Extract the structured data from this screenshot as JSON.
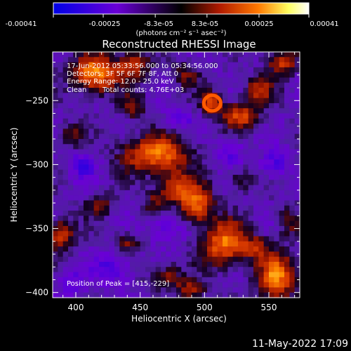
{
  "colorbar": {
    "tick_labels": [
      "-0.00041",
      "-0.00025",
      "-8.3e-05",
      "8.3e-05",
      "0.00025",
      "0.00041"
    ],
    "tick_values": [
      -0.00041,
      -0.00025,
      -8.3e-05,
      8.3e-05,
      0.00025,
      0.00041
    ],
    "range": [
      -0.00041,
      0.00041
    ],
    "units": "(photons cm⁻² s⁻¹ asec⁻²)",
    "colors": [
      "#0000e6",
      "#6a00d6",
      "#000000",
      "#b01a00",
      "#ff7800",
      "#ffff60",
      "#ffffff"
    ]
  },
  "annotations": {
    "line1": "17-Jun-2012 05:33:56.000 to 05:34:56.000",
    "line2": "Detectors: 3F 5F 6F 7F 8F, Att 0",
    "line3": "Energy Range: 12.0 - 25.0 keV",
    "line4_a": "Clean",
    "line4_b": "Total counts: 4.76E+03",
    "peak": "Position of Peak = [415,-229]"
  },
  "footer": {
    "timestamp": "11-May-2022 17:09"
  },
  "chart_data": {
    "type": "heatmap",
    "title": "Reconstructed RHESSI Image",
    "xlabel": "Heliocentric X (arcsec)",
    "ylabel": "Heliocentric Y (arcsec)",
    "xlim": [
      382,
      574
    ],
    "ylim": [
      -404,
      -212
    ],
    "x_ticks": [
      400,
      450,
      500,
      550
    ],
    "y_ticks": [
      -400,
      -350,
      -300,
      -250
    ],
    "x_tick_labels": [
      "400",
      "450",
      "500",
      "550"
    ],
    "y_tick_labels": [
      "−400",
      "−350",
      "−300",
      "−250"
    ],
    "peak_position": [
      415,
      -229
    ],
    "blobs": [
      {
        "x": 415,
        "y": -229,
        "sx": 12,
        "sy": 10,
        "amp": 1.0
      },
      {
        "x": 462,
        "y": -292,
        "sx": 18,
        "sy": 10,
        "amp": 0.9
      },
      {
        "x": 478,
        "y": -318,
        "sx": 10,
        "sy": 8,
        "amp": 0.7
      },
      {
        "x": 494,
        "y": -332,
        "sx": 9,
        "sy": 10,
        "amp": 0.85
      },
      {
        "x": 516,
        "y": -362,
        "sx": 12,
        "sy": 12,
        "amp": 0.9
      },
      {
        "x": 506,
        "y": -252,
        "sx": 6,
        "sy": 6,
        "amp": 0.7
      },
      {
        "x": 528,
        "y": -262,
        "sx": 10,
        "sy": 7,
        "amp": 0.7
      },
      {
        "x": 542,
        "y": -242,
        "sx": 8,
        "sy": 7,
        "amp": 0.6
      },
      {
        "x": 560,
        "y": -220,
        "sx": 8,
        "sy": 7,
        "amp": 0.65
      },
      {
        "x": 445,
        "y": -222,
        "sx": 9,
        "sy": 8,
        "amp": 0.6
      },
      {
        "x": 388,
        "y": -355,
        "sx": 7,
        "sy": 9,
        "amp": 0.65
      },
      {
        "x": 556,
        "y": -388,
        "sx": 10,
        "sy": 13,
        "amp": 0.9
      },
      {
        "x": 540,
        "y": -365,
        "sx": 7,
        "sy": 6,
        "amp": 0.5
      },
      {
        "x": 418,
        "y": -332,
        "sx": 7,
        "sy": 6,
        "amp": 0.45
      },
      {
        "x": 440,
        "y": -362,
        "sx": 7,
        "sy": 6,
        "amp": 0.45
      },
      {
        "x": 470,
        "y": -388,
        "sx": 9,
        "sy": 7,
        "amp": 0.5
      },
      {
        "x": 490,
        "y": -398,
        "sx": 8,
        "sy": 6,
        "amp": 0.45
      },
      {
        "x": 395,
        "y": -278,
        "sx": 7,
        "sy": 7,
        "amp": 0.4
      },
      {
        "x": 445,
        "y": -255,
        "sx": 7,
        "sy": 7,
        "amp": 0.45
      },
      {
        "x": 485,
        "y": -230,
        "sx": 7,
        "sy": 7,
        "amp": 0.4
      },
      {
        "x": 528,
        "y": -312,
        "sx": 7,
        "sy": 7,
        "amp": 0.35
      },
      {
        "x": 565,
        "y": -345,
        "sx": 6,
        "sy": 8,
        "amp": 0.4
      },
      {
        "x": 460,
        "y": -330,
        "sx": 6,
        "sy": 6,
        "amp": 0.35
      },
      {
        "x": 555,
        "y": -300,
        "sx": 8,
        "sy": 8,
        "amp": -0.4
      },
      {
        "x": 520,
        "y": -290,
        "sx": 8,
        "sy": 8,
        "amp": -0.35
      },
      {
        "x": 405,
        "y": -300,
        "sx": 8,
        "sy": 8,
        "amp": -0.35
      },
      {
        "x": 430,
        "y": -380,
        "sx": 10,
        "sy": 10,
        "amp": -0.4
      },
      {
        "x": 470,
        "y": -350,
        "sx": 10,
        "sy": 8,
        "amp": -0.35
      },
      {
        "x": 395,
        "y": -392,
        "sx": 8,
        "sy": 8,
        "amp": -0.3
      },
      {
        "x": 480,
        "y": -265,
        "sx": 8,
        "sy": 6,
        "amp": -0.3
      }
    ]
  }
}
